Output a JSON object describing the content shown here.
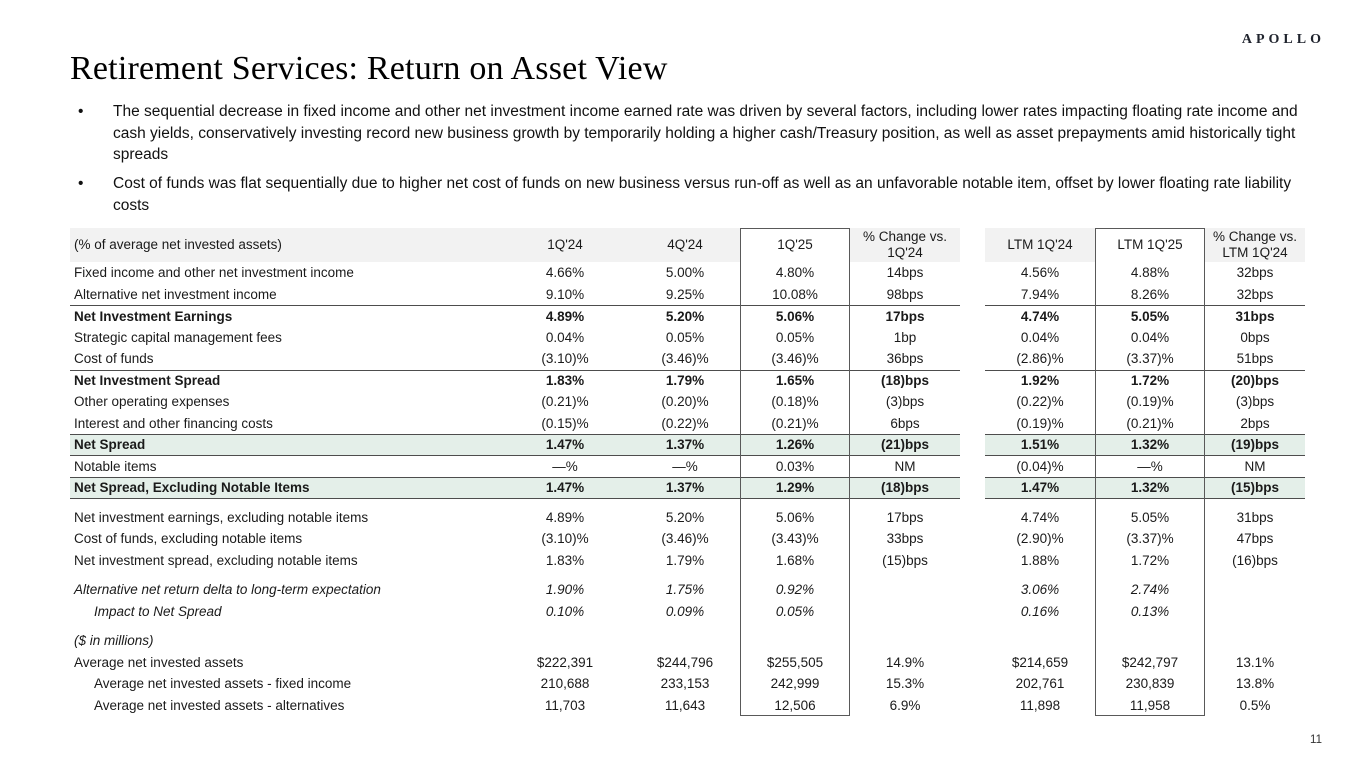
{
  "logo": "APOLLO",
  "page_number": "11",
  "title": "Retirement Services: Return on Asset View",
  "bullets": [
    "The sequential decrease in fixed income and other net investment income earned rate was driven by several factors, including lower rates impacting floating rate income and cash yields, conservatively investing record new business growth by temporarily holding a higher cash/Treasury position, as well as asset prepayments amid historically tight spreads",
    "Cost of funds was flat sequentially due to higher net cost of funds on new business versus run-off as well as an unfavorable notable item, offset by lower floating rate liability costs"
  ],
  "colors": {
    "green_row_bg": "#e4efe9",
    "header_bg": "#f2f2f2",
    "rule": "#4d4d4d",
    "box_border": "#595959",
    "logo_color": "#20242e"
  },
  "table": {
    "columns": [
      "(% of average net invested assets)",
      "1Q'24",
      "4Q'24",
      "1Q'25",
      "% Change vs. 1Q'24",
      "LTM 1Q'24",
      "LTM 1Q'25",
      "% Change vs. LTM 1Q'24"
    ],
    "rows": [
      {
        "label": "Fixed income and other net investment income",
        "values": [
          "4.66%",
          "5.00%",
          "4.80%",
          "14bps",
          "4.56%",
          "4.88%",
          "32bps"
        ]
      },
      {
        "label": "Alternative net investment income",
        "values": [
          "9.10%",
          "9.25%",
          "10.08%",
          "98bps",
          "7.94%",
          "8.26%",
          "32bps"
        ]
      },
      {
        "label": "Net Investment Earnings",
        "bold": true,
        "topRule": true,
        "values": [
          "4.89%",
          "5.20%",
          "5.06%",
          "17bps",
          "4.74%",
          "5.05%",
          "31bps"
        ]
      },
      {
        "label": "Strategic capital management fees",
        "values": [
          "0.04%",
          "0.05%",
          "0.05%",
          "1bp",
          "0.04%",
          "0.04%",
          "0bps"
        ]
      },
      {
        "label": "Cost of funds",
        "values": [
          "(3.10)%",
          "(3.46)%",
          "(3.46)%",
          "36bps",
          "(2.86)%",
          "(3.37)%",
          "51bps"
        ]
      },
      {
        "label": "Net Investment Spread",
        "bold": true,
        "topRule": true,
        "values": [
          "1.83%",
          "1.79%",
          "1.65%",
          "(18)bps",
          "1.92%",
          "1.72%",
          "(20)bps"
        ]
      },
      {
        "label": "Other operating expenses",
        "values": [
          "(0.21)%",
          "(0.20)%",
          "(0.18)%",
          "(3)bps",
          "(0.22)%",
          "(0.19)%",
          "(3)bps"
        ]
      },
      {
        "label": "Interest and other financing costs",
        "values": [
          "(0.15)%",
          "(0.22)%",
          "(0.21)%",
          "6bps",
          "(0.19)%",
          "(0.21)%",
          "2bps"
        ]
      },
      {
        "label": "Net Spread",
        "bold": true,
        "green": true,
        "topRule": true,
        "bottomRule": true,
        "values": [
          "1.47%",
          "1.37%",
          "1.26%",
          "(21)bps",
          "1.51%",
          "1.32%",
          "(19)bps"
        ]
      },
      {
        "label": "Notable items",
        "values": [
          "—%",
          "—%",
          "0.03%",
          "NM",
          "(0.04)%",
          "—%",
          "NM"
        ]
      },
      {
        "label": "Net Spread, Excluding Notable Items",
        "bold": true,
        "green": true,
        "topRule": true,
        "bottomRule": true,
        "values": [
          "1.47%",
          "1.37%",
          "1.29%",
          "(18)bps",
          "1.47%",
          "1.32%",
          "(15)bps"
        ]
      },
      {
        "label": "Net investment earnings, excluding notable items",
        "spacerBefore": true,
        "values": [
          "4.89%",
          "5.20%",
          "5.06%",
          "17bps",
          "4.74%",
          "5.05%",
          "31bps"
        ]
      },
      {
        "label": "Cost of funds, excluding notable items",
        "values": [
          "(3.10)%",
          "(3.46)%",
          "(3.43)%",
          "33bps",
          "(2.90)%",
          "(3.37)%",
          "47bps"
        ]
      },
      {
        "label": "Net investment spread, excluding notable items",
        "values": [
          "1.83%",
          "1.79%",
          "1.68%",
          "(15)bps",
          "1.88%",
          "1.72%",
          "(16)bps"
        ]
      },
      {
        "label": "Alternative net return delta to long-term expectation",
        "italic": true,
        "spacerBefore": true,
        "values": [
          "1.90%",
          "1.75%",
          "0.92%",
          "",
          "3.06%",
          "2.74%",
          ""
        ]
      },
      {
        "label": "Impact to Net Spread",
        "italic": true,
        "indent": 1,
        "values": [
          "0.10%",
          "0.09%",
          "0.05%",
          "",
          "0.16%",
          "0.13%",
          ""
        ]
      },
      {
        "label": "($ in millions)",
        "italic": true,
        "spacerBefore": true,
        "values": [
          "",
          "",
          "",
          "",
          "",
          "",
          ""
        ]
      },
      {
        "label": "Average net invested assets",
        "values": [
          "$222,391",
          "$244,796",
          "$255,505",
          "14.9%",
          "$214,659",
          "$242,797",
          "13.1%"
        ]
      },
      {
        "label": "Average net invested assets - fixed income",
        "indent": 1,
        "values": [
          "210,688",
          "233,153",
          "242,999",
          "15.3%",
          "202,761",
          "230,839",
          "13.8%"
        ]
      },
      {
        "label": "Average net invested assets - alternatives",
        "indent": 1,
        "values": [
          "11,703",
          "11,643",
          "12,506",
          "6.9%",
          "11,898",
          "11,958",
          "0.5%"
        ]
      }
    ]
  }
}
